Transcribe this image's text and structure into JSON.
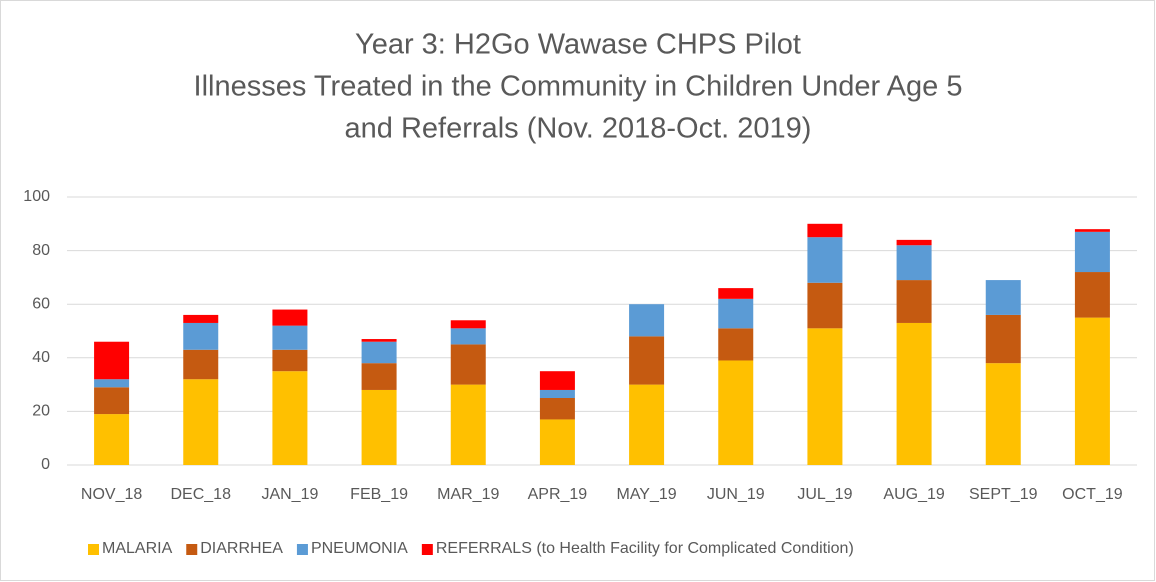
{
  "chart_data": {
    "type": "stacked_bar",
    "title": [
      "Year 3: H2Go Wawase CHPS Pilot",
      "Illnesses Treated in the Community in Children Under Age 5",
      "and Referrals (Nov. 2018-Oct. 2019)"
    ],
    "categories": [
      "NOV_18",
      "DEC_18",
      "JAN_19",
      "FEB_19",
      "MAR_19",
      "APR_19",
      "MAY_19",
      "JUN_19",
      "JUL_19",
      "AUG_19",
      "SEPT_19",
      "OCT_19"
    ],
    "series": [
      {
        "name": "MALARIA",
        "color": "#ffc000",
        "values": [
          19,
          32,
          35,
          28,
          30,
          17,
          30,
          39,
          51,
          53,
          38,
          55
        ]
      },
      {
        "name": "DIARRHEA",
        "color": "#c55a11",
        "values": [
          10,
          11,
          8,
          10,
          15,
          8,
          18,
          12,
          17,
          16,
          18,
          17
        ]
      },
      {
        "name": "PNEUMONIA",
        "color": "#5b9bd5",
        "values": [
          3,
          10,
          9,
          8,
          6,
          3,
          12,
          11,
          17,
          13,
          13,
          15
        ]
      },
      {
        "name": "REFERRALS (to Health Facility for Complicated Condition)",
        "color": "#ff0000",
        "values": [
          14,
          3,
          6,
          1,
          3,
          7,
          0,
          4,
          5,
          2,
          0,
          1
        ]
      }
    ],
    "ylim": [
      0,
      100
    ],
    "yticks": [
      0,
      20,
      40,
      60,
      80,
      100
    ],
    "grid": true,
    "legend": "bottom"
  }
}
